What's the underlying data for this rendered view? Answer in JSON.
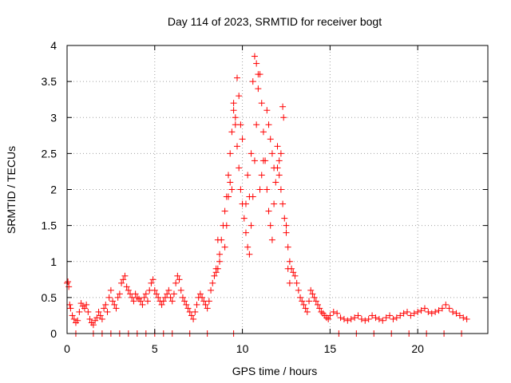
{
  "chart_data": {
    "type": "scatter",
    "title": "Day 114 of 2023, SRMTID for receiver bogt",
    "xlabel": "GPS time / hours",
    "ylabel": "SRMTID / TECUs",
    "xlim": [
      0,
      24
    ],
    "ylim": [
      0,
      4
    ],
    "xticks": [
      0,
      5,
      10,
      15,
      20
    ],
    "xtick_labels": [
      "0",
      "5",
      "10",
      "15",
      "20"
    ],
    "yticks": [
      0,
      0.5,
      1,
      1.5,
      2,
      2.5,
      3,
      3.5,
      4
    ],
    "ytick_labels": [
      "0",
      "0.5",
      "1",
      "1.5",
      "2",
      "2.5",
      "3",
      "3.5",
      "4"
    ],
    "grid": true,
    "marker": "+",
    "series": [
      {
        "name": "SRMTID",
        "color": "#ff0000",
        "x": [
          0.0,
          0.05,
          0.1,
          0.15,
          0.2,
          0.3,
          0.4,
          0.5,
          0.6,
          0.7,
          0.8,
          0.9,
          1.0,
          1.1,
          1.2,
          1.3,
          1.4,
          1.5,
          1.6,
          1.7,
          1.8,
          1.9,
          2.0,
          2.1,
          2.2,
          2.3,
          2.4,
          2.5,
          2.6,
          2.7,
          2.8,
          2.9,
          3.0,
          3.1,
          3.2,
          3.3,
          3.4,
          3.5,
          3.6,
          3.7,
          3.8,
          3.9,
          4.0,
          4.1,
          4.2,
          4.3,
          4.4,
          4.5,
          4.6,
          4.7,
          4.8,
          4.9,
          5.0,
          5.1,
          5.2,
          5.3,
          5.4,
          5.5,
          5.6,
          5.7,
          5.8,
          5.9,
          6.0,
          6.1,
          6.2,
          6.3,
          6.4,
          6.5,
          6.6,
          6.7,
          6.8,
          6.9,
          7.0,
          7.1,
          7.2,
          7.3,
          7.4,
          7.5,
          7.6,
          7.7,
          7.8,
          7.9,
          8.0,
          8.1,
          8.2,
          8.3,
          8.4,
          8.5,
          8.6,
          8.7,
          8.8,
          8.9,
          9.0,
          9.1,
          9.2,
          9.3,
          9.4,
          9.5,
          9.6,
          9.7,
          9.8,
          9.9,
          10.0,
          10.1,
          10.2,
          10.3,
          10.4,
          10.5,
          10.6,
          10.7,
          10.8,
          10.9,
          11.0,
          11.1,
          11.2,
          11.3,
          11.4,
          11.5,
          11.6,
          11.7,
          11.8,
          11.9,
          12.0,
          12.1,
          12.2,
          12.3,
          12.4,
          12.5,
          12.6,
          12.7,
          12.8,
          12.9,
          13.0,
          13.1,
          13.2,
          13.3,
          13.4,
          13.5,
          13.6,
          13.7,
          13.8,
          13.9,
          14.0,
          14.1,
          14.2,
          14.3,
          14.4,
          14.5,
          14.6,
          14.7,
          14.8,
          14.9,
          15.0,
          15.2,
          15.4,
          15.6,
          15.8,
          16.0,
          16.2,
          16.4,
          16.6,
          16.8,
          17.0,
          17.2,
          17.4,
          17.6,
          17.8,
          18.0,
          18.2,
          18.4,
          18.6,
          18.8,
          19.0,
          19.2,
          19.4,
          19.6,
          19.8,
          20.0,
          20.2,
          20.4,
          20.6,
          20.8,
          21.0,
          21.2,
          21.4,
          21.6,
          21.8,
          22.0,
          22.2,
          22.4,
          22.6,
          22.8,
          9.7,
          9.8,
          10.6,
          10.7,
          10.8,
          10.9,
          12.3,
          12.35,
          9.5,
          9.6,
          9.9,
          10.0,
          10.5,
          11.4,
          11.5,
          11.6,
          11.7,
          11.8,
          12.0,
          12.1,
          12.2,
          9.2,
          9.3,
          9.4,
          10.2,
          10.3,
          10.4,
          11.0,
          11.1,
          11.2,
          9.0,
          9.1,
          8.5,
          8.6,
          8.7,
          12.5,
          12.6,
          12.7,
          0.5,
          1.5,
          2.0,
          2.5,
          3.0,
          3.5,
          4.0,
          4.5,
          5.0,
          5.5,
          6.0,
          7.0,
          8.0,
          9.5,
          15.5,
          16.5,
          17.5,
          18.5,
          19.5,
          20.5,
          21.5,
          22.5
        ],
        "y": [
          0.7,
          0.72,
          0.65,
          0.4,
          0.35,
          0.25,
          0.2,
          0.15,
          0.18,
          0.3,
          0.42,
          0.38,
          0.35,
          0.4,
          0.3,
          0.2,
          0.15,
          0.12,
          0.18,
          0.22,
          0.3,
          0.25,
          0.2,
          0.35,
          0.4,
          0.3,
          0.5,
          0.6,
          0.45,
          0.4,
          0.35,
          0.5,
          0.55,
          0.7,
          0.75,
          0.8,
          0.65,
          0.6,
          0.55,
          0.5,
          0.45,
          0.55,
          0.5,
          0.48,
          0.45,
          0.4,
          0.5,
          0.55,
          0.45,
          0.6,
          0.7,
          0.75,
          0.6,
          0.55,
          0.5,
          0.45,
          0.4,
          0.45,
          0.5,
          0.55,
          0.6,
          0.5,
          0.45,
          0.55,
          0.7,
          0.8,
          0.75,
          0.6,
          0.5,
          0.45,
          0.4,
          0.35,
          0.3,
          0.25,
          0.2,
          0.3,
          0.4,
          0.5,
          0.55,
          0.5,
          0.45,
          0.4,
          0.35,
          0.45,
          0.6,
          0.7,
          0.8,
          0.85,
          0.9,
          1.1,
          1.3,
          1.5,
          1.7,
          1.9,
          2.2,
          2.5,
          2.8,
          3.1,
          2.9,
          2.6,
          2.3,
          2.0,
          1.8,
          1.6,
          1.4,
          1.2,
          1.1,
          1.5,
          1.9,
          2.4,
          2.9,
          3.4,
          3.6,
          3.2,
          2.8,
          2.4,
          2.0,
          1.7,
          1.5,
          1.3,
          1.8,
          2.1,
          2.3,
          2.2,
          2.0,
          1.8,
          1.6,
          1.4,
          1.2,
          1.0,
          0.9,
          0.85,
          0.8,
          0.7,
          0.6,
          0.5,
          0.45,
          0.4,
          0.35,
          0.3,
          0.45,
          0.6,
          0.55,
          0.5,
          0.45,
          0.4,
          0.35,
          0.3,
          0.28,
          0.25,
          0.22,
          0.2,
          0.25,
          0.3,
          0.28,
          0.22,
          0.2,
          0.18,
          0.2,
          0.22,
          0.25,
          0.2,
          0.18,
          0.2,
          0.25,
          0.22,
          0.2,
          0.18,
          0.22,
          0.25,
          0.2,
          0.22,
          0.25,
          0.28,
          0.3,
          0.25,
          0.28,
          0.3,
          0.32,
          0.35,
          0.3,
          0.28,
          0.3,
          0.32,
          0.35,
          0.4,
          0.35,
          0.3,
          0.28,
          0.25,
          0.22,
          0.2,
          3.55,
          3.3,
          3.5,
          3.85,
          3.75,
          3.6,
          3.15,
          3.0,
          3.2,
          3.0,
          2.9,
          2.7,
          2.5,
          3.1,
          2.9,
          2.7,
          2.5,
          2.3,
          2.6,
          2.4,
          2.5,
          1.9,
          2.1,
          2.0,
          1.8,
          2.2,
          1.9,
          2.0,
          2.2,
          2.4,
          1.2,
          1.5,
          0.9,
          1.3,
          1.0,
          1.5,
          0.9,
          0.7,
          0.0,
          0.0,
          0.0,
          0.0,
          0.0,
          0.0,
          0.0,
          0.0,
          0.0,
          0.0,
          0.0,
          0.0,
          0.0,
          0.0,
          0.0,
          0.0,
          0.0,
          0.0,
          0.0,
          0.0,
          0.0,
          0.0
        ]
      }
    ]
  }
}
